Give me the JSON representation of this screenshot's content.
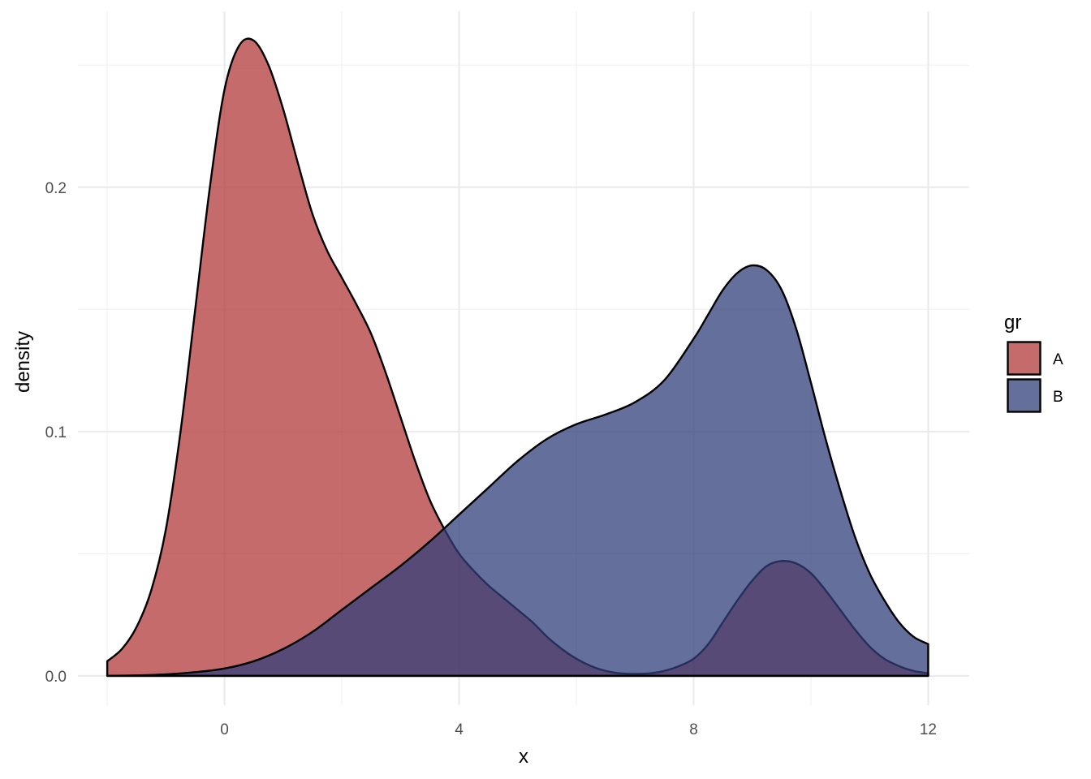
{
  "chart_data": {
    "type": "area",
    "subtype": "density",
    "xlabel": "x",
    "ylabel": "density",
    "xlim": [
      -2.5,
      12.7
    ],
    "ylim": [
      -0.012,
      0.272
    ],
    "x_ticks": [
      0,
      4,
      8,
      12
    ],
    "x_tick_labels": [
      "0",
      "4",
      "8",
      "12"
    ],
    "y_ticks": [
      0.0,
      0.1,
      0.2
    ],
    "y_tick_labels": [
      "0.0",
      "0.1",
      "0.2"
    ],
    "grid": true,
    "legend": {
      "title": "gr",
      "position": "right"
    },
    "series": [
      {
        "name": "A",
        "color": "#b33a3a",
        "opacity": 0.75,
        "x": [
          -2.0,
          -1.75,
          -1.5,
          -1.25,
          -1.0,
          -0.75,
          -0.5,
          -0.25,
          0.0,
          0.25,
          0.5,
          0.75,
          1.0,
          1.25,
          1.5,
          1.75,
          2.0,
          2.25,
          2.5,
          2.75,
          3.0,
          3.25,
          3.5,
          3.75,
          4.0,
          4.25,
          4.5,
          4.75,
          5.0,
          5.25,
          5.5,
          5.75,
          6.0,
          6.25,
          6.5,
          6.75,
          7.0,
          7.25,
          7.5,
          7.75,
          8.0,
          8.25,
          8.5,
          8.75,
          9.0,
          9.25,
          9.5,
          9.75,
          10.0,
          10.25,
          10.5,
          10.75,
          11.0,
          11.25,
          11.5,
          11.75,
          12.0
        ],
        "y": [
          0.006,
          0.011,
          0.02,
          0.035,
          0.06,
          0.1,
          0.15,
          0.2,
          0.24,
          0.258,
          0.26,
          0.25,
          0.232,
          0.21,
          0.189,
          0.174,
          0.163,
          0.152,
          0.14,
          0.124,
          0.106,
          0.088,
          0.072,
          0.06,
          0.05,
          0.043,
          0.037,
          0.032,
          0.027,
          0.022,
          0.016,
          0.011,
          0.007,
          0.004,
          0.002,
          0.001,
          0.0008,
          0.001,
          0.002,
          0.004,
          0.007,
          0.013,
          0.022,
          0.031,
          0.039,
          0.045,
          0.047,
          0.046,
          0.042,
          0.035,
          0.027,
          0.019,
          0.012,
          0.007,
          0.004,
          0.002,
          0.001
        ]
      },
      {
        "name": "B",
        "color": "#323f79",
        "opacity": 0.75,
        "x": [
          -2.0,
          -1.5,
          -1.0,
          -0.5,
          0.0,
          0.5,
          1.0,
          1.5,
          2.0,
          2.5,
          3.0,
          3.5,
          4.0,
          4.5,
          5.0,
          5.5,
          6.0,
          6.5,
          7.0,
          7.5,
          8.0,
          8.25,
          8.5,
          8.75,
          9.0,
          9.25,
          9.5,
          9.75,
          10.0,
          10.25,
          10.5,
          10.75,
          11.0,
          11.25,
          11.5,
          11.75,
          12.0
        ],
        "y": [
          0.0,
          0.0002,
          0.0006,
          0.0015,
          0.003,
          0.006,
          0.011,
          0.018,
          0.027,
          0.036,
          0.045,
          0.055,
          0.066,
          0.077,
          0.088,
          0.097,
          0.103,
          0.107,
          0.112,
          0.121,
          0.138,
          0.148,
          0.158,
          0.165,
          0.168,
          0.166,
          0.158,
          0.142,
          0.12,
          0.097,
          0.076,
          0.057,
          0.042,
          0.031,
          0.022,
          0.016,
          0.013
        ]
      }
    ]
  }
}
